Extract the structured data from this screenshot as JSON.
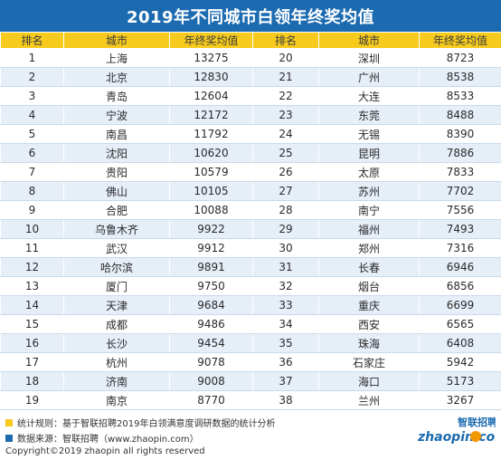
{
  "title": "2019年不同城市白领年终奖均值",
  "headers": [
    "排名",
    "城市",
    "年终奖均值",
    "排名",
    "城市",
    "年终奖均值"
  ],
  "rows": [
    [
      "1",
      "上海",
      "13275",
      "20",
      "深圳",
      "8723"
    ],
    [
      "2",
      "北京",
      "12830",
      "21",
      "广州",
      "8538"
    ],
    [
      "3",
      "青岛",
      "12604",
      "22",
      "大连",
      "8533"
    ],
    [
      "4",
      "宁波",
      "12172",
      "23",
      "东莞",
      "8488"
    ],
    [
      "5",
      "南昌",
      "11792",
      "24",
      "无锡",
      "8390"
    ],
    [
      "6",
      "沈阳",
      "10620",
      "25",
      "昆明",
      "7886"
    ],
    [
      "7",
      "贵阳",
      "10579",
      "26",
      "太原",
      "7833"
    ],
    [
      "8",
      "佛山",
      "10105",
      "27",
      "苏州",
      "7702"
    ],
    [
      "9",
      "合肥",
      "10088",
      "28",
      "南宁",
      "7556"
    ],
    [
      "10",
      "乌鲁木齐",
      "9922",
      "29",
      "福州",
      "7493"
    ],
    [
      "11",
      "武汉",
      "9912",
      "30",
      "郑州",
      "7316"
    ],
    [
      "12",
      "哈尔滨",
      "9891",
      "31",
      "长春",
      "6946"
    ],
    [
      "13",
      "厦门",
      "9750",
      "32",
      "烟台",
      "6856"
    ],
    [
      "14",
      "天津",
      "9684",
      "33",
      "重庆",
      "6699"
    ],
    [
      "15",
      "成都",
      "9486",
      "34",
      "西安",
      "6565"
    ],
    [
      "16",
      "长沙",
      "9454",
      "35",
      "珠海",
      "6408"
    ],
    [
      "17",
      "杭州",
      "9078",
      "36",
      "石家庄",
      "5942"
    ],
    [
      "18",
      "济南",
      "9008",
      "37",
      "海口",
      "5173"
    ],
    [
      "19",
      "南京",
      "8770",
      "38",
      "兰州",
      "3267"
    ]
  ],
  "footer": {
    "note1": "统计规则：基于智联招聘2019年白领满意度调研数据的统计分析",
    "note2": "数据来源：智联招聘（www.zhaopin.com）",
    "copyright": "Copyright©2019 zhaopin all rights reserved"
  },
  "logo": {
    "cn": "智联招聘",
    "en": "zhaopin.com"
  },
  "colors": {
    "title_bg": "#1c6bb1",
    "header_bg": "#f6cb1e",
    "stripe": "#e6eef8",
    "note1_square": "#f6cb1e",
    "note2_square": "#1c6bb1",
    "logo_blue": "#1c6bb1",
    "logo_orange": "#f39800"
  }
}
